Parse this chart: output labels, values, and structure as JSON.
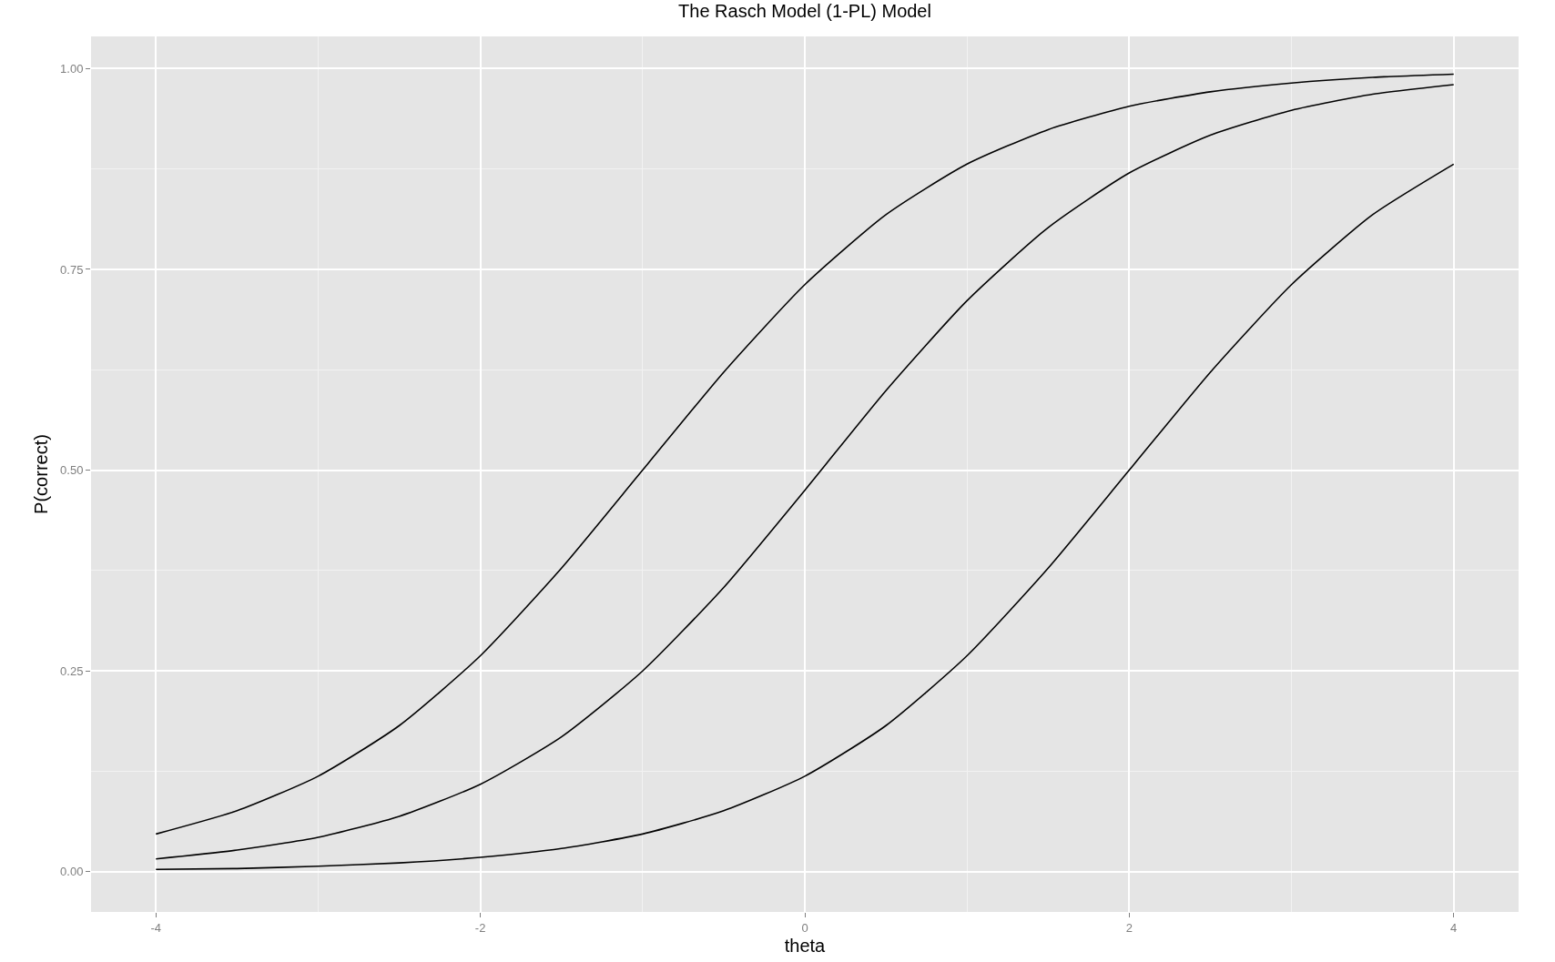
{
  "chart_data": {
    "type": "line",
    "title": "The Rasch Model (1-PL) Model",
    "xlabel": "theta",
    "ylabel": "P(correct)",
    "x": [
      -4,
      -3.5,
      -3,
      -2.5,
      -2,
      -1.5,
      -1,
      -0.5,
      0,
      0.5,
      1,
      1.5,
      2,
      2.5,
      3,
      3.5,
      4
    ],
    "series": [
      {
        "color": "#000000",
        "values": [
          0.047,
          0.076,
          0.119,
          0.182,
          0.269,
          0.378,
          0.5,
          0.622,
          0.731,
          0.818,
          0.881,
          0.924,
          0.953,
          0.971,
          0.982,
          0.989,
          0.993
        ]
      },
      {
        "color": "#000000",
        "values": [
          0.016,
          0.027,
          0.043,
          0.069,
          0.109,
          0.168,
          0.25,
          0.354,
          0.475,
          0.599,
          0.711,
          0.802,
          0.87,
          0.917,
          0.948,
          0.968,
          0.98
        ]
      },
      {
        "color": "#000000",
        "values": [
          0.003,
          0.004,
          0.007,
          0.011,
          0.018,
          0.029,
          0.047,
          0.076,
          0.119,
          0.182,
          0.269,
          0.378,
          0.5,
          0.622,
          0.731,
          0.818,
          0.881
        ]
      }
    ],
    "xlim": [
      -4.4,
      4.4
    ],
    "xticks": [
      -4,
      -2,
      0,
      2,
      4
    ],
    "ylim": [
      -0.05,
      1.04
    ],
    "yticks": [
      {
        "value": 0,
        "label": "0.00"
      },
      {
        "value": 0.25,
        "label": "0.25"
      },
      {
        "value": 0.5,
        "label": "0.50"
      },
      {
        "value": 0.75,
        "label": "0.75"
      },
      {
        "value": 1,
        "label": "1.00"
      }
    ],
    "grid": true,
    "marker": "none",
    "line_style": "solid"
  }
}
